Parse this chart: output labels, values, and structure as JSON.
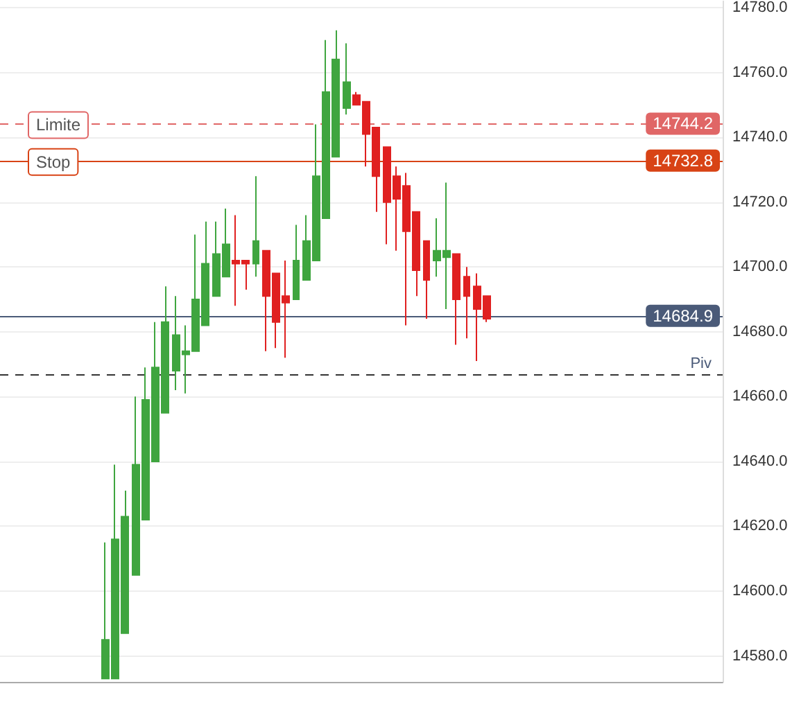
{
  "chart_data": {
    "type": "candlestick",
    "categories": [
      null,
      null,
      null,
      null,
      null,
      null,
      null,
      null,
      null,
      null,
      null,
      null,
      null,
      null,
      null,
      null,
      null,
      null,
      null,
      null,
      null,
      null,
      null,
      null,
      null,
      null,
      null,
      null,
      null,
      null,
      null,
      null,
      null,
      null,
      null,
      null,
      null,
      null,
      null,
      null,
      null,
      null,
      null,
      null,
      null,
      null,
      null,
      null,
      null,
      null,
      null,
      null,
      null,
      null,
      null,
      null,
      null,
      null,
      null,
      null,
      null,
      null,
      null,
      null,
      null,
      null,
      null,
      null,
      null,
      null,
      null,
      null
    ],
    "ohlc": [
      null,
      null,
      null,
      null,
      null,
      null,
      null,
      null,
      null,
      null,
      [
        14573,
        14615,
        14573,
        14585
      ],
      [
        14573,
        14639,
        14573,
        14616
      ],
      [
        14587,
        14631,
        14587,
        14623
      ],
      [
        14605,
        14660,
        14605,
        14639
      ],
      [
        14622,
        14669,
        14622,
        14659
      ],
      [
        14640,
        14683,
        14640,
        14669
      ],
      [
        14655,
        14694,
        14655,
        14683
      ],
      [
        14668,
        14691,
        14662,
        14679
      ],
      [
        14673,
        14682,
        14661,
        14674
      ],
      [
        14674,
        14710,
        14674,
        14690
      ],
      [
        14682,
        14714,
        14682,
        14701
      ],
      [
        14691,
        14714,
        14691,
        14704
      ],
      [
        14697,
        14718,
        14697,
        14707
      ],
      [
        14702,
        14716,
        14688,
        14701
      ],
      [
        14702,
        14702,
        14693,
        14701
      ],
      [
        14701,
        14728,
        14697,
        14708
      ],
      [
        14705,
        14705,
        14674,
        14691
      ],
      [
        14698,
        14698,
        14675,
        14683
      ],
      [
        14691,
        14702,
        14672,
        14689
      ],
      [
        14690,
        14713,
        14690,
        14702
      ],
      [
        14696,
        14716,
        14696,
        14708
      ],
      [
        14702,
        14744,
        14702,
        14728
      ],
      [
        14715,
        14770,
        14715,
        14754
      ],
      [
        14734,
        14773,
        14734,
        14764
      ],
      [
        14749,
        14769,
        14747,
        14757
      ],
      [
        14753,
        14754,
        14750,
        14750
      ],
      [
        14751,
        14751,
        14731,
        14741
      ],
      [
        14743,
        14743,
        14717,
        14728
      ],
      [
        14737,
        14737,
        14707,
        14720
      ],
      [
        14728,
        14731,
        14705,
        14721
      ],
      [
        14725,
        14729,
        14682,
        14711
      ],
      [
        14717,
        14717,
        14691,
        14699
      ],
      [
        14708,
        14708,
        14684,
        14696
      ],
      [
        14702,
        14715,
        14697,
        14705
      ],
      [
        14703,
        14726,
        14687,
        14705
      ],
      [
        14704,
        14704,
        14676,
        14690
      ],
      [
        14697,
        14700,
        14678,
        14691
      ],
      [
        14694,
        14698,
        14671,
        14687
      ],
      [
        14691,
        14691,
        14683,
        14684
      ],
      null,
      null,
      null,
      null,
      null,
      null,
      null,
      null,
      null,
      null,
      null,
      null,
      null,
      null,
      null,
      null,
      null,
      null,
      null,
      null,
      null,
      null,
      null
    ],
    "colors": [
      null,
      null,
      null,
      null,
      null,
      null,
      null,
      null,
      null,
      null,
      "#3fa53f",
      "#3fa53f",
      "#3fa53f",
      "#3fa53f",
      "#3fa53f",
      "#3fa53f",
      "#3fa53f",
      "#3fa53f",
      "#3fa53f",
      "#3fa53f",
      "#3fa53f",
      "#3fa53f",
      "#3fa53f",
      "#e02020",
      "#e02020",
      "#3fa53f",
      "#e02020",
      "#e02020",
      "#e02020",
      "#3fa53f",
      "#3fa53f",
      "#3fa53f",
      "#3fa53f",
      "#3fa53f",
      "#3fa53f",
      "#e02020",
      "#e02020",
      "#e02020",
      "#e02020",
      "#e02020",
      "#e02020",
      "#e02020",
      "#e02020",
      "#3fa53f",
      "#3fa53f",
      "#e02020",
      "#e02020",
      "#e02020",
      "#e02020",
      null,
      null,
      null,
      null,
      null,
      null,
      null,
      null,
      null,
      null,
      null,
      null,
      null,
      null,
      null,
      null,
      null,
      null,
      null,
      null,
      null,
      null,
      null
    ],
    "ylim": [
      14572,
      14782
    ],
    "yticks": [
      {
        "value": 14580,
        "label": "14580.0"
      },
      {
        "value": 14600,
        "label": "14600.0"
      },
      {
        "value": 14620,
        "label": "14620.0"
      },
      {
        "value": 14640,
        "label": "14640.0"
      },
      {
        "value": 14660,
        "label": "14660.0"
      },
      {
        "value": 14680,
        "label": "14680.0"
      },
      {
        "value": 14700,
        "label": "14700.0"
      },
      {
        "value": 14720,
        "label": "14720.0"
      },
      {
        "value": 14740,
        "label": "14740.0"
      },
      {
        "value": 14760,
        "label": "14760.0"
      },
      {
        "value": 14780,
        "label": "14780.0"
      }
    ],
    "tick_labels": "y",
    "grid": "y",
    "ref_lines": [
      {
        "axis": "y",
        "value": 14744.2,
        "label": "14744.2",
        "color": "#e06666",
        "line_style": "dashed"
      },
      {
        "axis": "y",
        "value": 14732.8,
        "label": "14732.8",
        "color": "#d84315",
        "line_style": "solid"
      },
      {
        "axis": "y",
        "value": 14684.9,
        "label": "14684.9",
        "color": "#4a5a78",
        "line_style": "solid"
      },
      {
        "axis": "y",
        "value": 14667,
        "label": "Piv",
        "color": "#333333",
        "line_style": "dashed"
      }
    ],
    "annotations": [
      {
        "text": "Limite",
        "y": 14744.2
      },
      {
        "text": "Stop",
        "y": 14732.8
      }
    ]
  }
}
